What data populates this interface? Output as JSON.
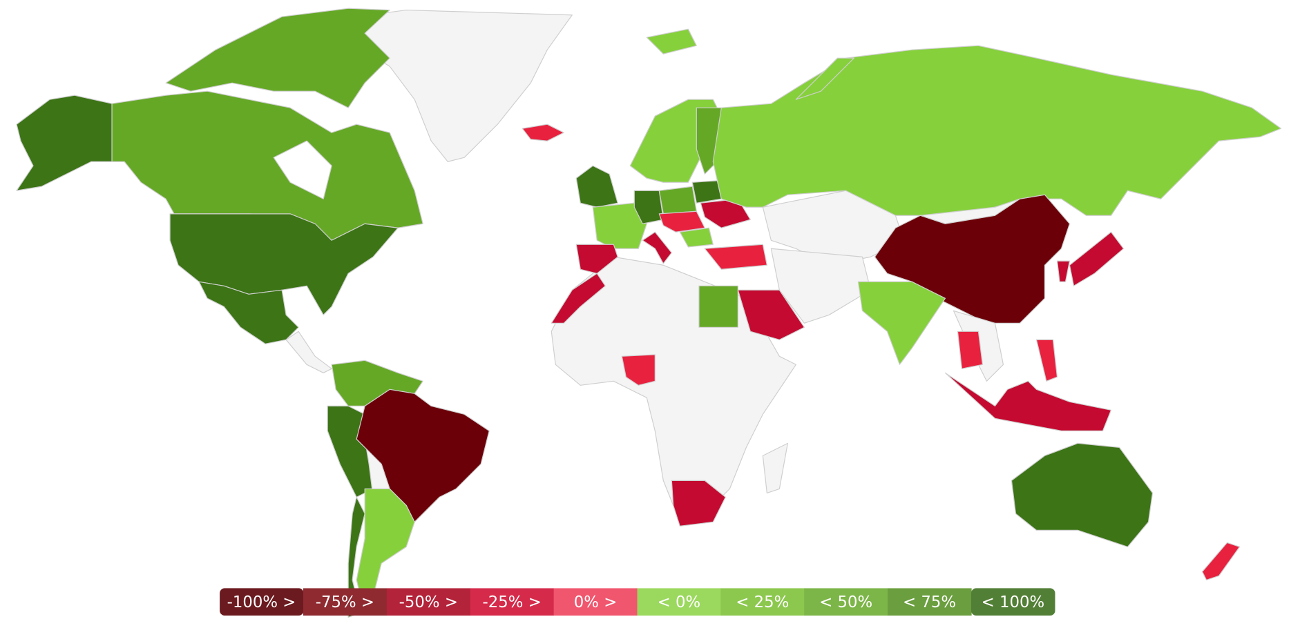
{
  "legend": {
    "items": [
      {
        "label": "-100% >",
        "color": "#6b1a1f"
      },
      {
        "label": "-75% >",
        "color": "#8e2a30"
      },
      {
        "label": "-50% >",
        "color": "#b3233a"
      },
      {
        "label": "-25% >",
        "color": "#d52a4a"
      },
      {
        "label": "0% >",
        "color": "#f0566e"
      },
      {
        "label": "< 0%",
        "color": "#9bd85e"
      },
      {
        "label": "< 25%",
        "color": "#8cc84e"
      },
      {
        "label": "< 50%",
        "color": "#7cb548"
      },
      {
        "label": "< 75%",
        "color": "#6a9e3e"
      },
      {
        "label": "< 100%",
        "color": "#527f36"
      }
    ]
  }
}
